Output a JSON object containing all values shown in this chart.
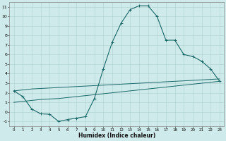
{
  "xlabel": "Humidex (Indice chaleur)",
  "ylabel": "",
  "xlim": [
    -0.5,
    23.5
  ],
  "ylim": [
    -1.5,
    11.5
  ],
  "xticks": [
    0,
    1,
    2,
    3,
    4,
    5,
    6,
    7,
    8,
    9,
    10,
    11,
    12,
    13,
    14,
    15,
    16,
    17,
    18,
    19,
    20,
    21,
    22,
    23
  ],
  "yticks": [
    -1,
    0,
    1,
    2,
    3,
    4,
    5,
    6,
    7,
    8,
    9,
    10,
    11
  ],
  "bg_color": "#ceeaea",
  "grid_color": "#aed0d0",
  "line_color": "#1a6868",
  "line1_x": [
    0,
    1,
    2,
    3,
    4,
    5,
    6,
    7,
    8,
    9,
    10,
    11,
    12,
    13,
    14,
    15,
    16,
    17,
    18,
    19,
    20,
    21,
    22,
    23
  ],
  "line1_y": [
    2.2,
    1.6,
    0.3,
    -0.2,
    -0.25,
    -1.0,
    -0.8,
    -0.65,
    -0.5,
    1.4,
    4.5,
    7.3,
    9.3,
    10.7,
    11.1,
    11.1,
    10.0,
    7.5,
    7.5,
    6.0,
    5.8,
    5.3,
    4.5,
    3.2
  ],
  "line2_x": [
    0,
    1,
    2,
    3,
    4,
    5,
    6,
    7,
    8,
    9,
    10,
    11,
    12,
    13,
    14,
    15,
    16,
    17,
    18,
    19,
    20,
    21,
    22,
    23
  ],
  "line2_y": [
    2.2,
    2.3,
    2.4,
    2.45,
    2.5,
    2.55,
    2.6,
    2.65,
    2.7,
    2.75,
    2.8,
    2.85,
    2.9,
    2.95,
    3.0,
    3.05,
    3.1,
    3.15,
    3.2,
    3.25,
    3.3,
    3.35,
    3.4,
    3.45
  ],
  "line3_x": [
    0,
    1,
    2,
    3,
    4,
    5,
    6,
    7,
    8,
    9,
    10,
    11,
    12,
    13,
    14,
    15,
    16,
    17,
    18,
    19,
    20,
    21,
    22,
    23
  ],
  "line3_y": [
    1.0,
    1.1,
    1.2,
    1.3,
    1.35,
    1.4,
    1.5,
    1.6,
    1.7,
    1.8,
    1.9,
    2.0,
    2.1,
    2.2,
    2.3,
    2.4,
    2.5,
    2.6,
    2.7,
    2.8,
    2.9,
    3.0,
    3.1,
    3.2
  ],
  "figsize": [
    3.2,
    2.0
  ],
  "dpi": 100
}
